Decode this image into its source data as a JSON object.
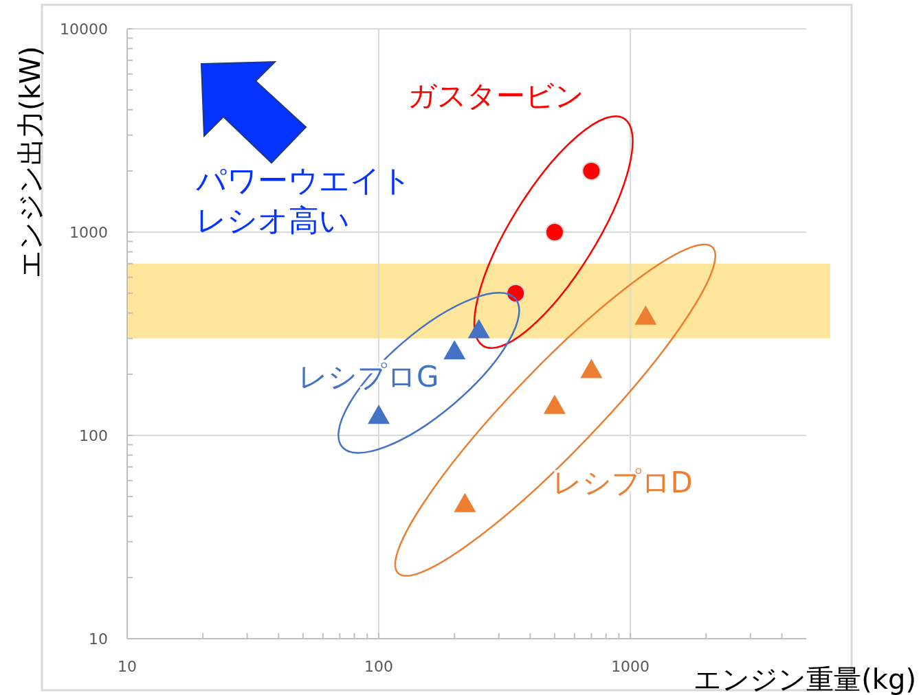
{
  "chart_data": {
    "type": "scatter",
    "xlabel": "エンジン重量(kg)",
    "ylabel": "エンジン出力(kW)",
    "log": "xy",
    "xlim": [
      10,
      5000
    ],
    "ylim": [
      10,
      10000
    ],
    "xticks": [
      10,
      {
        "value": 20,
        "label": null
      },
      {
        "value": 30,
        "label": null
      },
      {
        "value": 40,
        "label": null
      },
      {
        "value": 50,
        "label": null
      },
      {
        "value": 60,
        "label": null
      },
      {
        "value": 70,
        "label": null
      },
      {
        "value": 80,
        "label": null
      },
      {
        "value": 90,
        "label": null
      },
      100,
      {
        "value": 200,
        "label": null
      },
      {
        "value": 300,
        "label": null
      },
      {
        "value": 400,
        "label": null
      },
      {
        "value": 500,
        "label": null
      },
      {
        "value": 600,
        "label": null
      },
      {
        "value": 700,
        "label": null
      },
      {
        "value": 800,
        "label": null
      },
      {
        "value": 900,
        "label": null
      },
      1000,
      {
        "value": 2000,
        "label": null
      },
      {
        "value": 3000,
        "label": null
      },
      {
        "value": 4000,
        "label": null
      }
    ],
    "yticks": [
      10,
      {
        "value": 20,
        "label": null
      },
      {
        "value": 30,
        "label": null
      },
      {
        "value": 40,
        "label": null
      },
      {
        "value": 50,
        "label": null
      },
      {
        "value": 60,
        "label": null
      },
      {
        "value": 70,
        "label": null
      },
      {
        "value": 80,
        "label": null
      },
      {
        "value": 90,
        "label": null
      },
      100,
      {
        "value": 200,
        "label": null
      },
      {
        "value": 300,
        "label": null
      },
      {
        "value": 400,
        "label": null
      },
      {
        "value": 500,
        "label": null
      },
      {
        "value": 600,
        "label": null
      },
      {
        "value": 700,
        "label": null
      },
      {
        "value": 800,
        "label": null
      },
      {
        "value": 900,
        "label": null
      },
      1000,
      {
        "value": 2000,
        "label": null
      },
      {
        "value": 3000,
        "label": null
      },
      {
        "value": 4000,
        "label": null
      },
      {
        "value": 5000,
        "label": null
      },
      {
        "value": 6000,
        "label": null
      },
      {
        "value": 7000,
        "label": null
      },
      {
        "value": 8000,
        "label": null
      },
      {
        "value": 9000,
        "label": null
      },
      10000
    ],
    "grid": true,
    "legend": false,
    "series": [
      {
        "name": "ガスタービン",
        "color": "#ff0000",
        "marker": "circle",
        "x": [
          350,
          500,
          700
        ],
        "values": [
          500,
          1000,
          2000
        ]
      },
      {
        "name": "レシプロG",
        "color": "#4472c4",
        "marker": "triangle",
        "x": [
          100,
          200,
          250
        ],
        "values": [
          125,
          260,
          330
        ]
      },
      {
        "name": "レシプロD",
        "color": "#ed7d31",
        "marker": "triangle",
        "x": [
          220,
          500,
          700,
          1150
        ],
        "values": [
          46,
          140,
          210,
          385
        ]
      }
    ],
    "bands": [
      {
        "axis": "y",
        "from": 300,
        "to": 700,
        "color": "#fee59c"
      }
    ],
    "annotations": [
      "パワーウエイト",
      "レシオ高い"
    ]
  }
}
